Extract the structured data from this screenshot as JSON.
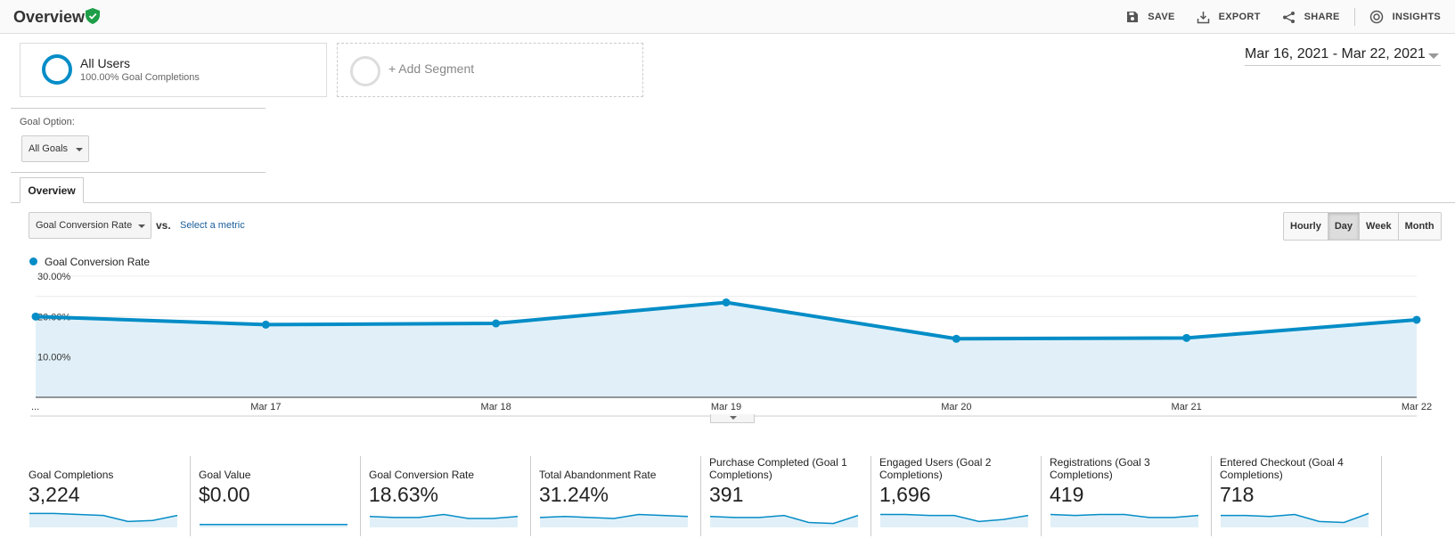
{
  "header": {
    "title": "Overview",
    "actions": [
      {
        "label": "SAVE",
        "icon": "save-icon"
      },
      {
        "label": "EXPORT",
        "icon": "export-icon"
      },
      {
        "label": "SHARE",
        "icon": "share-icon"
      },
      {
        "label": "INSIGHTS",
        "icon": "insights-icon"
      }
    ]
  },
  "segments": {
    "active": {
      "name": "All Users",
      "sub": "100.00% Goal Completions"
    },
    "add_label": "+ Add Segment"
  },
  "date_range": "Mar 16, 2021 - Mar 22, 2021",
  "goal_option": {
    "label": "Goal Option:",
    "value": "All Goals"
  },
  "tabs": [
    {
      "label": "Overview"
    }
  ],
  "metric_controls": {
    "primary": "Goal Conversion Rate",
    "vs": "vs.",
    "select_metric": "Select a metric",
    "granularity": [
      "Hourly",
      "Day",
      "Week",
      "Month"
    ],
    "active_granularity": "Day"
  },
  "colors": {
    "accent": "#058dc7",
    "fill": "#e1f0f8"
  },
  "chart_data": {
    "type": "area",
    "legend": "Goal Conversion Rate",
    "x": [
      "...",
      "Mar 17",
      "Mar 18",
      "Mar 19",
      "Mar 20",
      "Mar 21",
      "Mar 22"
    ],
    "y_ticks": [
      "30.00%",
      "20.00%",
      "10.00%"
    ],
    "ylim": [
      0,
      30
    ],
    "series": [
      {
        "name": "Goal Conversion Rate",
        "values": [
          20.0,
          18.0,
          18.3,
          23.5,
          14.5,
          14.7,
          19.2
        ]
      }
    ]
  },
  "scorecards": [
    {
      "label": "Goal Completions",
      "value": "3,224",
      "spark": [
        13,
        13,
        12,
        11,
        5,
        6,
        11
      ]
    },
    {
      "label": "Goal Value",
      "value": "$0.00",
      "spark": [
        2,
        2,
        2,
        2,
        2,
        2,
        2
      ]
    },
    {
      "label": "Goal Conversion Rate",
      "value": "18.63%",
      "spark": [
        10,
        9,
        9,
        12,
        8,
        8,
        10
      ]
    },
    {
      "label": "Total Abandonment Rate",
      "value": "31.24%",
      "spark": [
        9,
        10,
        9,
        8,
        12,
        11,
        10
      ]
    },
    {
      "label": "Purchase Completed (Goal 1 Completions)",
      "value": "391",
      "spark": [
        10,
        9,
        9,
        11,
        4,
        3,
        11
      ]
    },
    {
      "label": "Engaged Users (Goal 2 Completions)",
      "value": "1,696",
      "spark": [
        12,
        12,
        11,
        11,
        5,
        7,
        11
      ]
    },
    {
      "label": "Registrations (Goal 3 Completions)",
      "value": "419",
      "spark": [
        12,
        11,
        12,
        12,
        9,
        9,
        11
      ]
    },
    {
      "label": "Entered Checkout (Goal 4 Completions)",
      "value": "718",
      "spark": [
        11,
        11,
        10,
        12,
        5,
        4,
        13
      ]
    }
  ]
}
